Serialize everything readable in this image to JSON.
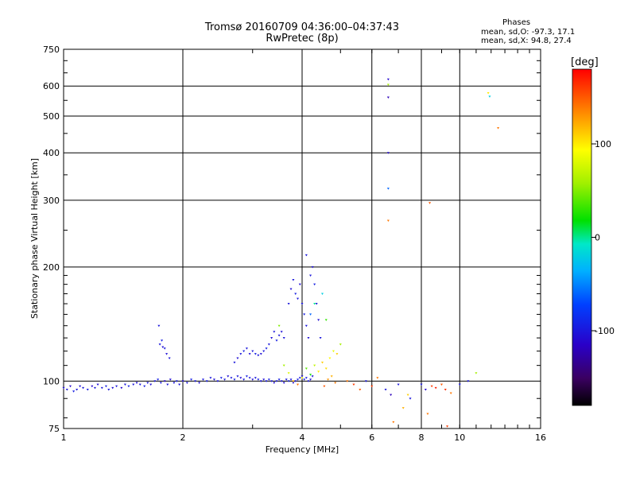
{
  "header": {
    "title_line1": "Tromsø 20160709 04:36:00–04:37:43",
    "title_line2": "RwPretec (8p)",
    "phases_title": "Phases",
    "phases_o": "mean, sd,O: -97.3, 17.1",
    "phases_x": "mean, sd,X:  94.8, 27.4"
  },
  "colorbar": {
    "unit_label": "[deg]",
    "ticks": [
      {
        "label": "100",
        "value": 100
      },
      {
        "label": "0",
        "value": 0
      },
      {
        "label": "-100",
        "value": -100
      }
    ],
    "range": [
      -180,
      180
    ]
  },
  "chart_data": {
    "type": "scatter",
    "xlabel": "Frequency [MHz]",
    "ylabel": "Stationary phase Virtual Height [km]",
    "xscale": "log",
    "yscale": "log",
    "xlim": [
      1,
      16
    ],
    "ylim": [
      75,
      750
    ],
    "x_ticks": [
      1,
      2,
      4,
      6,
      8,
      10,
      16
    ],
    "x_tick_labels": [
      "1",
      "2",
      "4",
      "6",
      "8",
      "10",
      "16"
    ],
    "y_ticks": [
      75,
      100,
      200,
      300,
      400,
      500,
      600,
      750
    ],
    "y_tick_labels": [
      "75",
      "100",
      "200",
      "300",
      "400",
      "500",
      "600",
      "750"
    ],
    "grid": true,
    "colormap": "rainbow phase [deg]",
    "points": [
      [
        1.0,
        96,
        -105
      ],
      [
        1.02,
        95,
        -100
      ],
      [
        1.04,
        97,
        -110
      ],
      [
        1.06,
        94,
        -95
      ],
      [
        1.08,
        95,
        -100
      ],
      [
        1.1,
        97,
        -105
      ],
      [
        1.12,
        96,
        -100
      ],
      [
        1.15,
        95,
        -95
      ],
      [
        1.18,
        97,
        -110
      ],
      [
        1.2,
        96,
        -100
      ],
      [
        1.22,
        98,
        -105
      ],
      [
        1.25,
        96,
        -100
      ],
      [
        1.28,
        97,
        -95
      ],
      [
        1.3,
        95,
        -100
      ],
      [
        1.33,
        96,
        -105
      ],
      [
        1.36,
        97,
        -100
      ],
      [
        1.4,
        96,
        -110
      ],
      [
        1.43,
        98,
        -100
      ],
      [
        1.46,
        97,
        -95
      ],
      [
        1.5,
        98,
        -100
      ],
      [
        1.53,
        99,
        -105
      ],
      [
        1.56,
        98,
        -100
      ],
      [
        1.6,
        97,
        -95
      ],
      [
        1.63,
        99,
        -100
      ],
      [
        1.66,
        98,
        -105
      ],
      [
        1.7,
        100,
        -100
      ],
      [
        1.73,
        101,
        -95
      ],
      [
        1.76,
        99,
        -100
      ],
      [
        1.8,
        100,
        -110
      ],
      [
        1.83,
        98,
        -100
      ],
      [
        1.86,
        101,
        -105
      ],
      [
        1.9,
        99,
        -100
      ],
      [
        1.93,
        100,
        -95
      ],
      [
        1.96,
        98,
        -100
      ],
      [
        2.0,
        100,
        -105
      ],
      [
        2.05,
        99,
        -100
      ],
      [
        2.1,
        101,
        -95
      ],
      [
        2.15,
        100,
        -100
      ],
      [
        2.2,
        99,
        -105
      ],
      [
        2.25,
        101,
        -100
      ],
      [
        2.3,
        100,
        -95
      ],
      [
        2.35,
        102,
        -100
      ],
      [
        2.4,
        101,
        -105
      ],
      [
        2.45,
        100,
        -100
      ],
      [
        2.5,
        102,
        -95
      ],
      [
        2.55,
        101,
        -100
      ],
      [
        2.6,
        103,
        -105
      ],
      [
        2.65,
        102,
        -100
      ],
      [
        2.7,
        101,
        -95
      ],
      [
        2.75,
        103,
        -100
      ],
      [
        2.8,
        102,
        -105
      ],
      [
        2.85,
        101,
        -100
      ],
      [
        2.9,
        103,
        -95
      ],
      [
        2.95,
        102,
        -100
      ],
      [
        3.0,
        101,
        -105
      ],
      [
        3.05,
        102,
        -100
      ],
      [
        3.1,
        101,
        -95
      ],
      [
        3.15,
        100,
        -100
      ],
      [
        3.2,
        101,
        -105
      ],
      [
        3.25,
        100,
        -100
      ],
      [
        3.3,
        101,
        -95
      ],
      [
        3.35,
        100,
        -100
      ],
      [
        3.4,
        99,
        -105
      ],
      [
        3.45,
        100,
        -100
      ],
      [
        3.5,
        101,
        -95
      ],
      [
        3.55,
        100,
        -100
      ],
      [
        3.6,
        99,
        -105
      ],
      [
        3.65,
        101,
        -100
      ],
      [
        3.7,
        100,
        -95
      ],
      [
        3.75,
        101,
        -100
      ],
      [
        3.8,
        99,
        -105
      ],
      [
        3.85,
        100,
        -100
      ],
      [
        3.9,
        101,
        -95
      ],
      [
        3.95,
        102,
        -100
      ],
      [
        4.0,
        103,
        -105
      ],
      [
        4.05,
        101,
        -100
      ],
      [
        4.1,
        102,
        -95
      ],
      [
        4.15,
        100,
        -100
      ],
      [
        4.2,
        101,
        -105
      ],
      [
        4.25,
        103,
        -100
      ],
      [
        1.75,
        125,
        -100
      ],
      [
        1.78,
        123,
        -105
      ],
      [
        1.8,
        122,
        -100
      ],
      [
        1.77,
        128,
        -95
      ],
      [
        1.74,
        140,
        -100
      ],
      [
        1.82,
        118,
        -105
      ],
      [
        1.85,
        115,
        -100
      ],
      [
        2.7,
        112,
        -100
      ],
      [
        2.75,
        115,
        -105
      ],
      [
        2.8,
        118,
        -100
      ],
      [
        2.85,
        120,
        -95
      ],
      [
        2.9,
        122,
        -100
      ],
      [
        2.95,
        118,
        -105
      ],
      [
        3.0,
        120,
        -100
      ],
      [
        3.05,
        118,
        -95
      ],
      [
        3.1,
        117,
        -100
      ],
      [
        3.15,
        118,
        -105
      ],
      [
        3.2,
        120,
        -100
      ],
      [
        3.25,
        122,
        -95
      ],
      [
        3.3,
        125,
        -100
      ],
      [
        3.35,
        130,
        -105
      ],
      [
        3.4,
        135,
        -100
      ],
      [
        3.45,
        128,
        -95
      ],
      [
        3.5,
        132,
        -100
      ],
      [
        3.55,
        135,
        -105
      ],
      [
        3.6,
        130,
        -100
      ],
      [
        3.7,
        160,
        -100
      ],
      [
        3.75,
        175,
        -105
      ],
      [
        3.8,
        185,
        -100
      ],
      [
        3.85,
        170,
        -95
      ],
      [
        3.9,
        165,
        -100
      ],
      [
        3.95,
        180,
        -105
      ],
      [
        4.0,
        160,
        -100
      ],
      [
        4.05,
        150,
        -95
      ],
      [
        4.1,
        140,
        -100
      ],
      [
        4.15,
        130,
        -105
      ],
      [
        4.2,
        190,
        -100
      ],
      [
        4.25,
        200,
        -105
      ],
      [
        4.1,
        215,
        -100
      ],
      [
        4.3,
        180,
        -95
      ],
      [
        4.35,
        160,
        -100
      ],
      [
        4.4,
        145,
        -105
      ],
      [
        4.45,
        130,
        -100
      ],
      [
        3.6,
        110,
        60
      ],
      [
        3.7,
        105,
        80
      ],
      [
        3.8,
        100,
        120
      ],
      [
        3.9,
        98,
        140
      ],
      [
        4.0,
        102,
        90
      ],
      [
        4.1,
        108,
        40
      ],
      [
        4.2,
        104,
        20
      ],
      [
        4.3,
        110,
        70
      ],
      [
        4.4,
        106,
        100
      ],
      [
        4.5,
        112,
        110
      ],
      [
        4.6,
        108,
        105
      ],
      [
        4.7,
        115,
        95
      ],
      [
        4.8,
        120,
        85
      ],
      [
        4.9,
        118,
        110
      ],
      [
        5.0,
        125,
        60
      ],
      [
        4.75,
        103,
        120
      ],
      [
        4.85,
        99,
        140
      ],
      [
        4.55,
        97,
        150
      ],
      [
        4.65,
        101,
        130
      ],
      [
        3.5,
        140,
        50
      ],
      [
        4.3,
        160,
        0
      ],
      [
        4.5,
        170,
        -20
      ],
      [
        4.2,
        150,
        -60
      ],
      [
        4.6,
        145,
        30
      ],
      [
        5.2,
        100,
        140
      ],
      [
        5.4,
        98,
        160
      ],
      [
        5.6,
        95,
        150
      ],
      [
        5.8,
        100,
        -100
      ],
      [
        6.0,
        97,
        160
      ],
      [
        6.2,
        102,
        140
      ],
      [
        6.5,
        95,
        -100
      ],
      [
        6.7,
        92,
        -120
      ],
      [
        7.0,
        98,
        -100
      ],
      [
        7.2,
        85,
        120
      ],
      [
        7.5,
        90,
        -100
      ],
      [
        8.0,
        98,
        -100
      ],
      [
        8.2,
        95,
        -110
      ],
      [
        8.5,
        97,
        160
      ],
      [
        8.7,
        96,
        170
      ],
      [
        9.0,
        98,
        150
      ],
      [
        9.2,
        95,
        165
      ],
      [
        9.5,
        93,
        140
      ],
      [
        10.0,
        98,
        -100
      ],
      [
        10.5,
        100,
        -100
      ],
      [
        11.0,
        105,
        60
      ],
      [
        8.3,
        82,
        140
      ],
      [
        9.3,
        76,
        160
      ],
      [
        6.8,
        78,
        140
      ],
      [
        7.4,
        92,
        110
      ],
      [
        6.6,
        625,
        -110
      ],
      [
        6.6,
        605,
        60
      ],
      [
        6.6,
        560,
        -120
      ],
      [
        6.6,
        400,
        -110
      ],
      [
        6.6,
        322,
        -60
      ],
      [
        6.6,
        265,
        140
      ],
      [
        8.4,
        295,
        150
      ],
      [
        11.8,
        575,
        100
      ],
      [
        11.9,
        563,
        -20
      ],
      [
        12.5,
        465,
        140
      ]
    ]
  }
}
